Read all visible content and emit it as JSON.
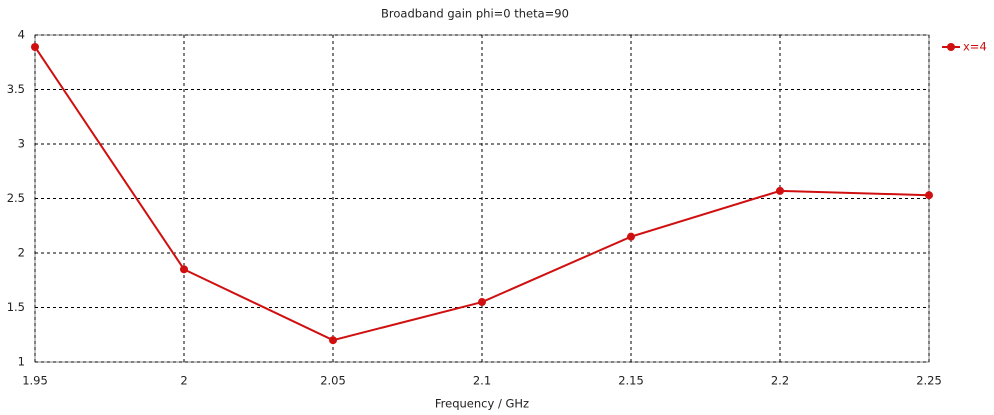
{
  "chart_data": {
    "type": "line",
    "title": "Broadband gain phi=0 theta=90",
    "x_label": "Frequency / GHz",
    "x": [
      1.95,
      2,
      2.05,
      2.1,
      2.15,
      2.2,
      2.25
    ],
    "series": [
      {
        "name": "x=4",
        "color": "#d01010",
        "values": [
          3.89,
          1.85,
          1.2,
          1.55,
          2.15,
          2.57,
          2.53
        ]
      }
    ],
    "xlim": [
      1.95,
      2.25
    ],
    "xticks": [
      1.95,
      2,
      2.05,
      2.1,
      2.15,
      2.2,
      2.25
    ],
    "ylim": [
      1,
      4
    ],
    "yticks": [
      1,
      1.5,
      2,
      2.5,
      3,
      3.5,
      4
    ],
    "grid": true,
    "legend": "top-right"
  }
}
